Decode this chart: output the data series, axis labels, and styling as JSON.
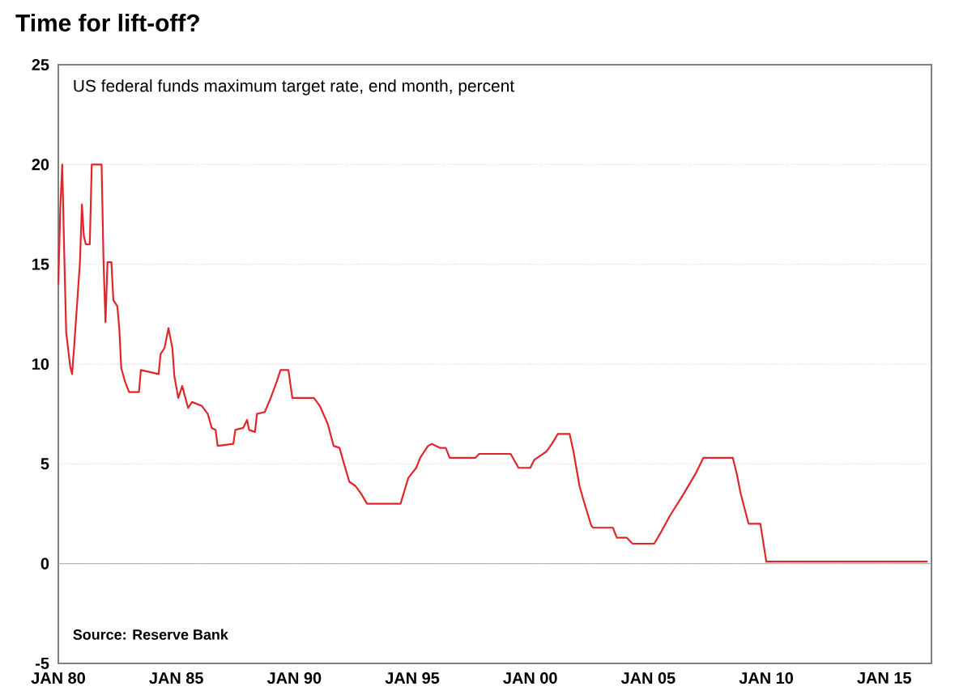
{
  "chart_data": {
    "type": "line",
    "title": "Time for lift-off?",
    "subtitle": "US federal funds maximum target rate, end month, percent",
    "annotations": [
      "Source: Reserve Bank"
    ],
    "x": [
      "1980-01",
      "1980-02",
      "1980-03",
      "1980-04",
      "1980-05",
      "1980-07",
      "1980-08",
      "1980-09",
      "1980-12",
      "1981-01",
      "1981-02",
      "1981-03",
      "1981-05",
      "1981-06",
      "1981-11",
      "1981-12",
      "1982-01",
      "1982-02",
      "1982-04",
      "1982-05",
      "1982-07",
      "1982-08",
      "1982-09",
      "1982-11",
      "1983-01",
      "1983-06",
      "1983-07",
      "1984-04",
      "1984-05",
      "1984-07",
      "1984-09",
      "1984-11",
      "1984-12",
      "1985-02",
      "1985-04",
      "1985-07",
      "1985-09",
      "1986-02",
      "1986-05",
      "1986-07",
      "1986-09",
      "1986-10",
      "1987-06",
      "1987-07",
      "1987-11",
      "1988-01",
      "1988-02",
      "1988-05",
      "1988-06",
      "1988-10",
      "1989-01",
      "1989-04",
      "1989-06",
      "1989-10",
      "1989-12",
      "1990-11",
      "1991-02",
      "1991-06",
      "1991-09",
      "1991-12",
      "1992-02",
      "1992-05",
      "1992-08",
      "1992-11",
      "1993-02",
      "1994-07",
      "1994-11",
      "1995-03",
      "1995-05",
      "1995-09",
      "1995-11",
      "1996-03",
      "1996-06",
      "1996-08",
      "1997-09",
      "1997-11",
      "1999-03",
      "1999-07",
      "2000-01",
      "2000-03",
      "2000-09",
      "2000-12",
      "2001-03",
      "2001-09",
      "2001-11",
      "2002-02",
      "2002-04",
      "2002-08",
      "2002-09",
      "2003-07",
      "2003-09",
      "2004-02",
      "2004-05",
      "2005-04",
      "2005-07",
      "2005-12",
      "2006-07",
      "2007-01",
      "2007-05",
      "2008-08",
      "2008-10",
      "2008-12",
      "2009-04",
      "2009-10",
      "2010-01",
      "2016-11"
    ],
    "series": [
      {
        "color": "#e0262b",
        "values": [
          14.0,
          17.8,
          20,
          15.6,
          11.6,
          9.9,
          9.5,
          10.8,
          15.1,
          18,
          16.4,
          16,
          16,
          20,
          20,
          15.1,
          12.1,
          15.1,
          15.1,
          13.2,
          12.9,
          11.8,
          9.8,
          9.1,
          8.6,
          8.6,
          9.7,
          9.5,
          10.5,
          10.8,
          11.8,
          10.8,
          9.4,
          8.3,
          8.9,
          7.8,
          8.1,
          7.9,
          7.5,
          6.8,
          6.7,
          5.9,
          6.0,
          6.7,
          6.8,
          7.2,
          6.7,
          6.6,
          7.5,
          7.6,
          8.3,
          9.1,
          9.7,
          9.7,
          8.3,
          8.3,
          7.9,
          7.0,
          5.9,
          5.8,
          5.1,
          4.1,
          3.9,
          3.5,
          3.0,
          3.0,
          4.3,
          4.8,
          5.3,
          5.9,
          6.0,
          5.8,
          5.8,
          5.3,
          5.3,
          5.5,
          5.5,
          4.8,
          4.8,
          5.2,
          5.6,
          6.0,
          6.5,
          6.5,
          5.6,
          3.9,
          3.2,
          1.9,
          1.8,
          1.8,
          1.3,
          1.3,
          1.0,
          1.0,
          1.5,
          2.4,
          3.5,
          4.5,
          5.3,
          5.3,
          4.5,
          3.5,
          2.0,
          2.0,
          0.1,
          0.1
        ]
      }
    ],
    "xlim": [
      "1980-01",
      "2017-01"
    ],
    "xticks": [
      {
        "value": "1980-01",
        "label": "JAN 80"
      },
      {
        "value": "1985-01",
        "label": "JAN 85"
      },
      {
        "value": "1990-01",
        "label": "JAN 90"
      },
      {
        "value": "1995-01",
        "label": "JAN 95"
      },
      {
        "value": "2000-01",
        "label": "JAN 00"
      },
      {
        "value": "2005-01",
        "label": "JAN 05"
      },
      {
        "value": "2010-01",
        "label": "JAN 10"
      },
      {
        "value": "2015-01",
        "label": "JAN 15"
      }
    ],
    "ylim": [
      -5,
      25
    ],
    "yticks": [
      -5,
      0,
      5,
      10,
      15,
      20,
      25
    ],
    "grid": "y",
    "line_style": "solid"
  }
}
